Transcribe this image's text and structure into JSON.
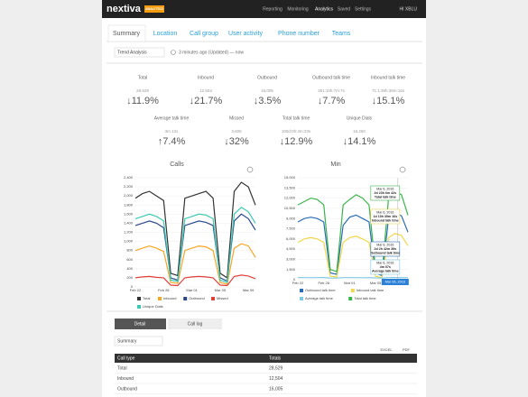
{
  "nav": {
    "logo": "nextiva",
    "badge": "ANALYTICS",
    "links": [
      "Reporting",
      "Monitoring",
      "Analytics",
      "Saved",
      "Settings"
    ],
    "user": "HI XBLU"
  },
  "tabs": [
    "Summary",
    "Location",
    "Call group",
    "User activity",
    "Phone number",
    "Teams"
  ],
  "filters": {
    "view": "Trend Analysis",
    "updated": "3 minutes ago (Updated) — now"
  },
  "kpis": [
    {
      "label": "Total",
      "value": "28,529",
      "change": "↓11.9%"
    },
    {
      "label": "Inbound",
      "value": "12,504",
      "change": "↓21.7%"
    },
    {
      "label": "Outbound",
      "value": "16,005",
      "change": "↓3.5%"
    },
    {
      "label": "Outbound talk time",
      "value": "351:10h:7m:7s",
      "change": "↓7.7%"
    },
    {
      "label": "Inbound talk time",
      "value": "71:1:39h:39m:16s",
      "change": "↓15.1%"
    },
    {
      "label": "Average talk time",
      "value": "3m 12s",
      "change": "↑7.4%"
    },
    {
      "label": "Missed",
      "value": "3,605",
      "change": "↓32%"
    },
    {
      "label": "Total talk time",
      "value": "100d:0h:4m:23s",
      "change": "↓12.9%"
    },
    {
      "label": "Unique Dials",
      "value": "16,260",
      "change": "↓14.1%"
    }
  ],
  "chart_data": [
    {
      "type": "line",
      "title": "Calls",
      "categories": [
        "Feb 22",
        null,
        null,
        null,
        "Feb 26",
        null,
        null,
        null,
        "Mar 01",
        null,
        null,
        null,
        "Mar 05",
        null,
        null,
        null,
        "Mar 09",
        null
      ],
      "ylim": [
        0,
        2400
      ],
      "yticks": [
        0,
        200,
        400,
        600,
        800,
        {
          "value": 1000,
          "label": "1,000"
        },
        {
          "value": 1200,
          "label": "1,200"
        },
        {
          "value": 1400,
          "label": "1,400"
        },
        {
          "value": 1600,
          "label": "1,600"
        },
        {
          "value": 1800,
          "label": "1,800"
        },
        {
          "value": 2000,
          "label": "2,000"
        },
        {
          "value": 2200,
          "label": "2,200"
        },
        {
          "value": 2400,
          "label": "2,400"
        }
      ],
      "series": [
        {
          "name": "Total",
          "color": "#333333",
          "values": [
            1950,
            2050,
            2100,
            2000,
            1900,
            300,
            250,
            1950,
            2000,
            2050,
            2100,
            1950,
            300,
            200,
            2100,
            2300,
            2200,
            1800
          ]
        },
        {
          "name": "Inbound",
          "color": "#f5a623",
          "values": [
            800,
            850,
            900,
            850,
            780,
            100,
            80,
            800,
            850,
            900,
            880,
            800,
            100,
            60,
            850,
            950,
            900,
            650
          ]
        },
        {
          "name": "Outbound",
          "color": "#2b4a8c",
          "values": [
            1350,
            1400,
            1450,
            1400,
            1300,
            200,
            150,
            1350,
            1400,
            1450,
            1420,
            1350,
            200,
            130,
            1450,
            1600,
            1500,
            1250
          ]
        },
        {
          "name": "Missed",
          "color": "#e0403a",
          "values": [
            200,
            220,
            230,
            210,
            200,
            40,
            30,
            200,
            220,
            230,
            220,
            200,
            40,
            30,
            230,
            260,
            240,
            180
          ]
        },
        {
          "name": "Unique Dials",
          "color": "#3cc9b4",
          "values": [
            1500,
            1550,
            1600,
            1550,
            1450,
            150,
            120,
            1500,
            1550,
            1600,
            1580,
            1500,
            150,
            100,
            1600,
            1750,
            1650,
            1400
          ]
        }
      ]
    },
    {
      "type": "line",
      "title": "Min",
      "categories": [
        "Feb 22",
        null,
        null,
        null,
        "Feb 26",
        null,
        null,
        null,
        "Mar 01",
        null,
        null,
        null,
        "Mar 05",
        null,
        null,
        null,
        "Mar 09",
        null
      ],
      "ylim": [
        0,
        15000
      ],
      "yticks": [
        0,
        {
          "value": 1500,
          "label": "1,500"
        },
        {
          "value": 3000,
          "label": "3,000"
        },
        {
          "value": 4500,
          "label": "4,500"
        },
        {
          "value": 6000,
          "label": "6,000"
        },
        {
          "value": 7500,
          "label": "7,500"
        },
        {
          "value": 9000,
          "label": "9,000"
        },
        {
          "value": 10500,
          "label": "10,500"
        },
        {
          "value": 12000,
          "label": "12,000"
        },
        {
          "value": 13500,
          "label": "13,500"
        },
        {
          "value": 15000,
          "label": "15,000"
        }
      ],
      "series": [
        {
          "name": "Outbound talk time",
          "color": "#2a6db5",
          "values": [
            8500,
            9000,
            9200,
            9000,
            8500,
            1000,
            800,
            8000,
            9200,
            9500,
            9000,
            8500,
            1000,
            600,
            9000,
            9800,
            9400,
            7000
          ]
        },
        {
          "name": "Inbound talk time",
          "color": "#f2d64b",
          "values": [
            5500,
            6000,
            6200,
            6000,
            5500,
            500,
            400,
            5500,
            6200,
            6400,
            6000,
            5500,
            500,
            300,
            6200,
            6800,
            6500,
            5000
          ]
        },
        {
          "name": "Average talk time",
          "color": "#7ec8e3",
          "values": [
            300,
            310,
            290,
            300,
            320,
            250,
            240,
            300,
            310,
            300,
            290,
            300,
            260,
            250,
            310,
            320,
            300,
            290
          ]
        },
        {
          "name": "Total talk time",
          "color": "#3cb44b",
          "values": [
            11000,
            11500,
            12000,
            11800,
            11000,
            1500,
            1200,
            11000,
            11800,
            12500,
            12000,
            11000,
            1500,
            1000,
            12000,
            13000,
            12500,
            9500
          ]
        }
      ],
      "annotations": [
        {
          "lines": [
            "Mar 6, 2016",
            "2d 23h 6m 42s",
            "Total talk time"
          ],
          "color": "#3cb44b"
        },
        {
          "lines": [
            "Mar 6, 2016",
            "1d 10h 39m 16s",
            "Inbound talk time"
          ],
          "color": "#f2d64b"
        },
        {
          "lines": [
            "Mar 6, 2016",
            "2d 2h 42m 39s",
            "Outbound talk time"
          ],
          "color": "#2a6db5"
        },
        {
          "lines": [
            "Mar 6, 2016",
            "4m 07s",
            "Average talk time"
          ],
          "color": "#7ec8e3"
        }
      ],
      "hover_label": "Mar 06, 2016"
    }
  ],
  "detail": {
    "tabs": [
      "Detail",
      "Call log"
    ],
    "select": "Summary",
    "exports": [
      "EXCEL",
      "PDF"
    ]
  },
  "table": {
    "header": [
      "Call type",
      "Totals"
    ],
    "rows": [
      [
        "Total",
        "28,529"
      ],
      [
        "Inbound",
        "12,504"
      ],
      [
        "Outbound",
        "16,005"
      ]
    ]
  }
}
